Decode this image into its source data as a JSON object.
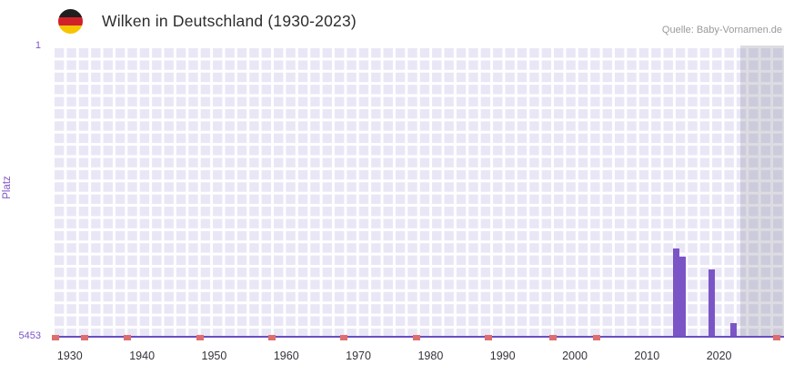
{
  "header": {
    "title": "Wilken in Deutschland (1930-2023)",
    "source": "Quelle: Baby-Vornamen.de",
    "flag_icon": "german-flag-icon"
  },
  "chart_data": {
    "type": "bar",
    "title": "Wilken in Deutschland (1930-2023)",
    "xlabel": "",
    "ylabel": "Platz",
    "y_axis": {
      "min": 1,
      "max": 5453,
      "inverted": true,
      "top_label": "1",
      "bottom_label": "5453"
    },
    "x_axis": {
      "min": 1927.5,
      "max": 2029,
      "tick_years": [
        1930,
        1940,
        1950,
        1960,
        1970,
        1980,
        1990,
        2000,
        2010,
        2020
      ]
    },
    "bars": [
      {
        "year": 2014,
        "rank": 3800
      },
      {
        "year": 2015,
        "rank": 3950
      },
      {
        "year": 2019,
        "rank": 4200
      },
      {
        "year": 2022,
        "rank": 5200
      }
    ],
    "no_data_marker_years": [
      1928,
      1932,
      1938,
      1948,
      1958,
      1968,
      1978,
      1988,
      1997,
      2003,
      2028
    ],
    "shaded_region": {
      "start_year": 2023,
      "end_year": 2029
    },
    "grid": true,
    "legend": "none",
    "colors": {
      "bar": "#7b55c6",
      "no_data_marker": "#de6e6e",
      "plot_background": "#e9e7f6",
      "grid_line": "#ffffff",
      "axis_line": "#6a4fc0",
      "shaded_region": "rgba(140,140,158,0.30)",
      "axis_label": "#7d55c7",
      "tick_label": "#33333c"
    }
  }
}
